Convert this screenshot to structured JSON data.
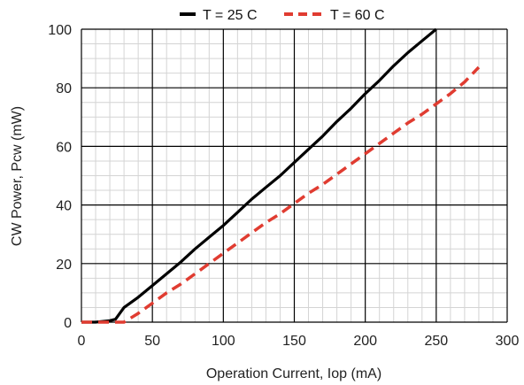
{
  "chart_data": {
    "type": "line",
    "title": "",
    "xlabel": "Operation Current, Iop (mA)",
    "ylabel": "CW Power, Pcw (mW)",
    "xlim": [
      0,
      300
    ],
    "ylim": [
      0,
      100
    ],
    "x_ticks": [
      "0",
      "50",
      "100",
      "150",
      "200",
      "250",
      "300"
    ],
    "y_ticks": [
      "0",
      "20",
      "40",
      "60",
      "80",
      "100"
    ],
    "grid": true,
    "legend_position": "top",
    "series": [
      {
        "name": "T = 25 C",
        "color": "#000000",
        "style": "solid",
        "x": [
          0,
          10,
          20,
          24,
          30,
          40,
          50,
          60,
          70,
          80,
          90,
          100,
          110,
          120,
          130,
          140,
          150,
          160,
          170,
          180,
          190,
          200,
          210,
          220,
          230,
          240,
          250
        ],
        "y": [
          0,
          0,
          0.5,
          1,
          5,
          8.5,
          12.5,
          16.5,
          20.5,
          25,
          29,
          33,
          37.5,
          42,
          46,
          50,
          54.5,
          59,
          63.5,
          68.5,
          73,
          78,
          82.5,
          87.5,
          92,
          96,
          100
        ]
      },
      {
        "name": "T = 60 C",
        "color": "#e03c31",
        "style": "dashed",
        "x": [
          0,
          20,
          30,
          40,
          50,
          60,
          70,
          80,
          90,
          100,
          110,
          120,
          130,
          140,
          150,
          160,
          170,
          180,
          190,
          200,
          210,
          220,
          230,
          240,
          250,
          260,
          270,
          280
        ],
        "y": [
          0,
          0,
          0,
          3,
          6.5,
          10,
          13,
          16.5,
          20,
          23.5,
          27,
          30.5,
          34,
          37,
          40.5,
          44,
          47,
          50.5,
          54,
          57.5,
          61,
          64.5,
          68,
          71,
          74.5,
          78,
          82,
          87
        ]
      }
    ]
  }
}
